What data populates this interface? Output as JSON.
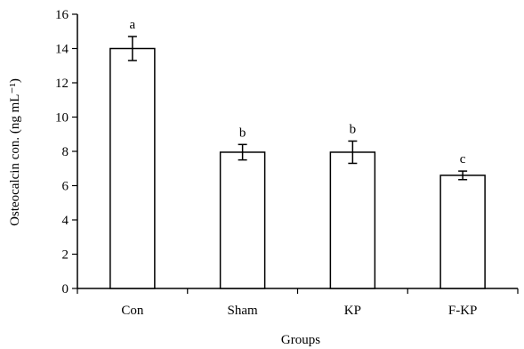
{
  "chart_data": {
    "type": "bar",
    "xlabel": "Groups",
    "ylabel": "Osteocalcin con. (ng mL⁻¹)",
    "ylim": [
      0,
      16
    ],
    "yticks": [
      "0",
      "2",
      "4",
      "6",
      "8",
      "10",
      "12",
      "14",
      "16"
    ],
    "categories": [
      "Con",
      "Sham",
      "KP",
      "F-KP"
    ],
    "values": [
      14.0,
      7.95,
      7.95,
      6.6
    ],
    "errors": [
      0.7,
      0.45,
      0.65,
      0.25
    ],
    "significance": [
      "a",
      "b",
      "b",
      "c"
    ],
    "bar_fill": "#ffffff",
    "bar_stroke": "#000000",
    "grid": false,
    "legend": "none"
  }
}
